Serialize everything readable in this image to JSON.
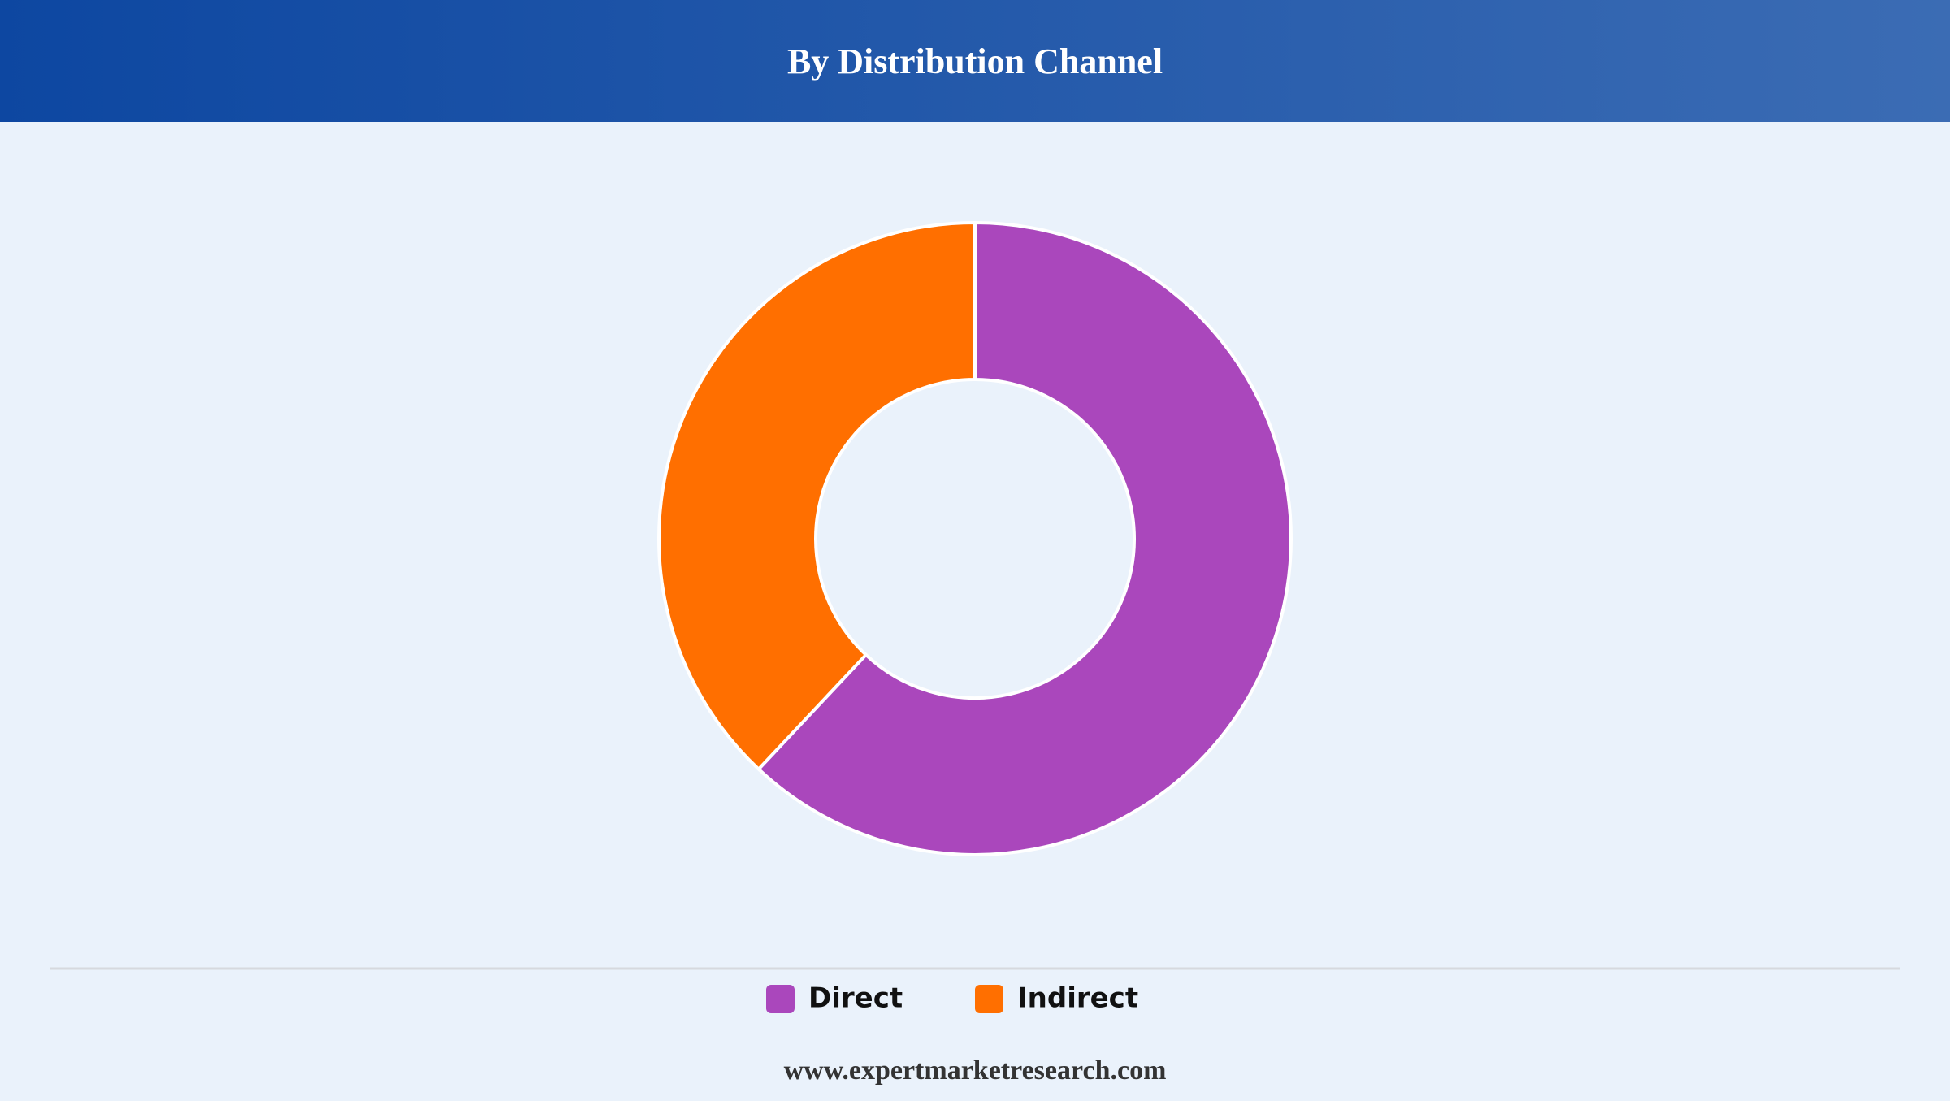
{
  "chart_data": {
    "type": "donut",
    "title": "By Distribution Channel",
    "categories": [
      "Direct",
      "Indirect"
    ],
    "values": [
      62,
      38
    ],
    "colors": [
      "#aa47bc",
      "#ff6f00"
    ],
    "legend": "bottom",
    "source": "www.expertmarketresearch.com"
  }
}
